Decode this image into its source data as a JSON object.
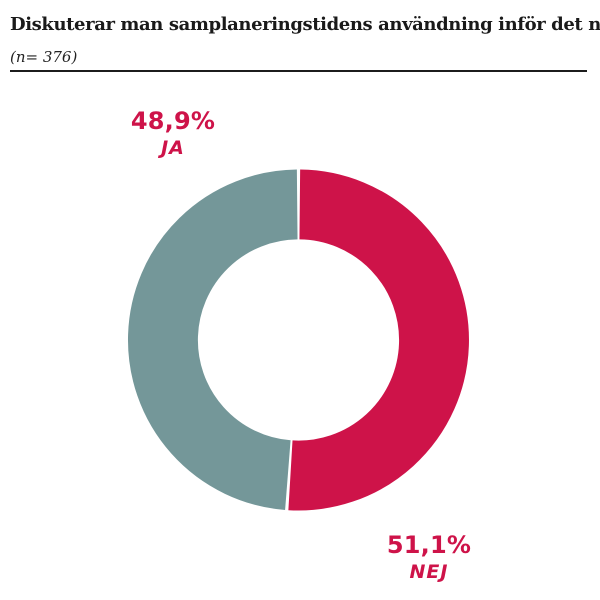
{
  "header": {
    "title": "Diskuterar man samplaneringstidens användning inför det nya läsåret?",
    "sample_size": "(n= 376)"
  },
  "chart_data": {
    "type": "pie",
    "variant": "donut",
    "title": "Diskuterar man samplaneringstidens användning inför det nya läsåret?",
    "n": 376,
    "categories": [
      "NEJ",
      "JA"
    ],
    "values": [
      51.1,
      48.9
    ],
    "segments": [
      {
        "label": "NEJ",
        "value": 51.1,
        "display": "51,1%",
        "color": "#ce1349",
        "label_position": "bottom-right"
      },
      {
        "label": "JA",
        "value": 48.9,
        "display": "48,9%",
        "color": "#749799",
        "label_position": "top-left"
      }
    ],
    "start_angle_deg": 0,
    "direction": "clockwise",
    "inner_radius_ratio": 0.59,
    "legend_position": "none",
    "grid": false
  },
  "colors": {
    "accent_red": "#ce1349",
    "accent_gray": "#749799",
    "text": "#1a1a1a",
    "background": "#ffffff"
  }
}
